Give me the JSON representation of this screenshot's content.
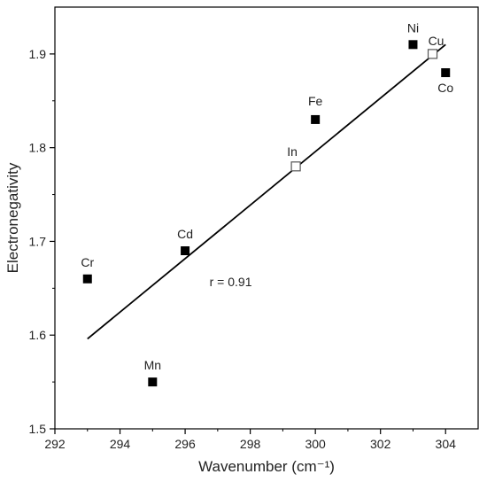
{
  "chart_data": {
    "type": "scatter",
    "title": "",
    "xlabel": "Wavenumber (cm⁻¹)",
    "ylabel": "Electronegativity",
    "xlim": [
      292,
      305
    ],
    "ylim": [
      1.5,
      1.95
    ],
    "x_ticks": [
      292,
      294,
      296,
      298,
      300,
      302,
      304
    ],
    "y_ticks": [
      1.5,
      1.6,
      1.7,
      1.8,
      1.9
    ],
    "y_tick_labels": [
      "1.5",
      "1.6",
      "1.7",
      "1.8",
      "1.9"
    ],
    "grid": false,
    "legend": "none",
    "series": [
      {
        "marker": "filled-square",
        "color": "#000000",
        "points": [
          {
            "label": "Cr",
            "x": 293.0,
            "y": 1.66
          },
          {
            "label": "Mn",
            "x": 295.0,
            "y": 1.55
          },
          {
            "label": "Cd",
            "x": 296.0,
            "y": 1.69
          },
          {
            "label": "Fe",
            "x": 300.0,
            "y": 1.83
          },
          {
            "label": "Ni",
            "x": 303.0,
            "y": 1.91
          },
          {
            "label": "Co",
            "x": 304.0,
            "y": 1.88
          }
        ]
      },
      {
        "marker": "open-square",
        "color": "#000000",
        "points": [
          {
            "label": "In",
            "x": 299.4,
            "y": 1.78
          },
          {
            "label": "Cu",
            "x": 303.6,
            "y": 1.9
          }
        ]
      }
    ],
    "fit_line": {
      "x": [
        293.0,
        304.0
      ],
      "y": [
        1.596,
        1.91
      ]
    },
    "annotations": [
      {
        "text": "r = 0.91",
        "x": 297.4,
        "y": 1.652
      }
    ]
  }
}
